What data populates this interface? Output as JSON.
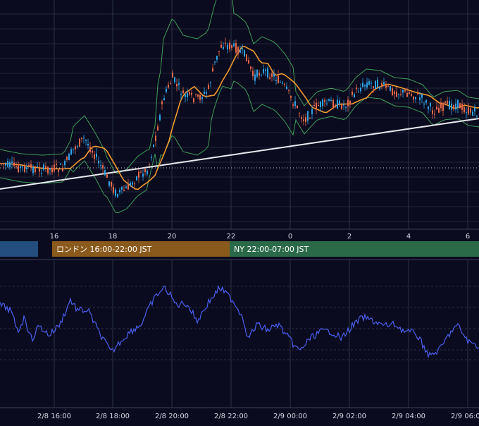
{
  "theme": {
    "background": "#0a0b1e",
    "grid": "#2c3147",
    "axis_line": "#3c4258",
    "axis_text": "#d4d6e2",
    "bullish": "#2fa2e8",
    "bearish": "#e8694a",
    "bollinger": "#3f9e5a",
    "ma_short": "#f29a2e",
    "ma_long": "#e8e8ee",
    "oscillator": "#4a5ff2",
    "price_line": "#c8c8d0"
  },
  "sessions": [
    {
      "label": "",
      "color": "#234e7e"
    },
    {
      "label": "ロンドン 16:00-22:00 JST",
      "color": "#8a5a1c"
    },
    {
      "label": "NY 22:00-07:00 JST",
      "color": "#2a6a48"
    }
  ],
  "chart_data": [
    {
      "type": "candlestick",
      "x_ticks": [
        "16",
        "18",
        "20",
        "22",
        "0",
        "2",
        "4",
        "6"
      ],
      "ohlc": [],
      "indicators": [
        "bollinger_bands",
        "moving_average_short",
        "moving_average_long"
      ],
      "horizontal_line": true,
      "grid": true
    },
    {
      "type": "line",
      "x_ticks": [
        "2/8 16:00",
        "2/8 18:00",
        "2/8 20:00",
        "2/8 22:00",
        "2/9 00:00",
        "2/9 02:00",
        "2/9 04:00",
        "2/9 06:00"
      ],
      "y_gridlines": 5,
      "grid": true
    }
  ]
}
